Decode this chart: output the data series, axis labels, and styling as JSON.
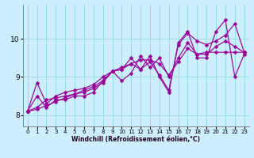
{
  "background_color": "#cceeff",
  "grid_color": "#99dddd",
  "line_color": "#990099",
  "xlabel": "Windchill (Refroidissement éolien,°C)",
  "ylim": [
    7.7,
    10.9
  ],
  "xlim": [
    -0.5,
    23.5
  ],
  "yticks": [
    8,
    9,
    10
  ],
  "xticks": [
    0,
    1,
    2,
    3,
    4,
    5,
    6,
    7,
    8,
    9,
    10,
    11,
    12,
    13,
    14,
    15,
    16,
    17,
    18,
    19,
    20,
    21,
    22,
    23
  ],
  "series": [
    [
      8.1,
      8.5,
      8.2,
      8.4,
      8.4,
      8.5,
      8.5,
      8.6,
      8.9,
      9.15,
      9.2,
      9.5,
      9.2,
      9.55,
      9.0,
      8.6,
      9.9,
      10.2,
      9.5,
      9.5,
      10.2,
      10.5,
      9.0,
      9.6
    ],
    [
      8.1,
      8.85,
      8.3,
      8.5,
      8.6,
      8.65,
      8.7,
      8.8,
      9.0,
      9.15,
      8.9,
      9.1,
      9.55,
      9.25,
      9.5,
      9.0,
      9.5,
      9.9,
      9.6,
      9.65,
      9.65,
      9.65,
      9.65,
      9.65
    ],
    [
      8.1,
      8.2,
      8.4,
      8.45,
      8.5,
      8.55,
      8.6,
      8.7,
      8.85,
      9.15,
      9.2,
      9.35,
      9.2,
      9.4,
      9.05,
      8.65,
      9.85,
      10.15,
      9.95,
      9.85,
      9.95,
      10.1,
      10.4,
      9.65
    ],
    [
      8.1,
      8.15,
      8.25,
      8.35,
      8.45,
      8.55,
      8.65,
      8.75,
      8.9,
      9.15,
      9.25,
      9.35,
      9.45,
      9.45,
      9.35,
      9.05,
      9.4,
      9.75,
      9.6,
      9.6,
      9.8,
      9.95,
      9.8,
      9.65
    ]
  ]
}
